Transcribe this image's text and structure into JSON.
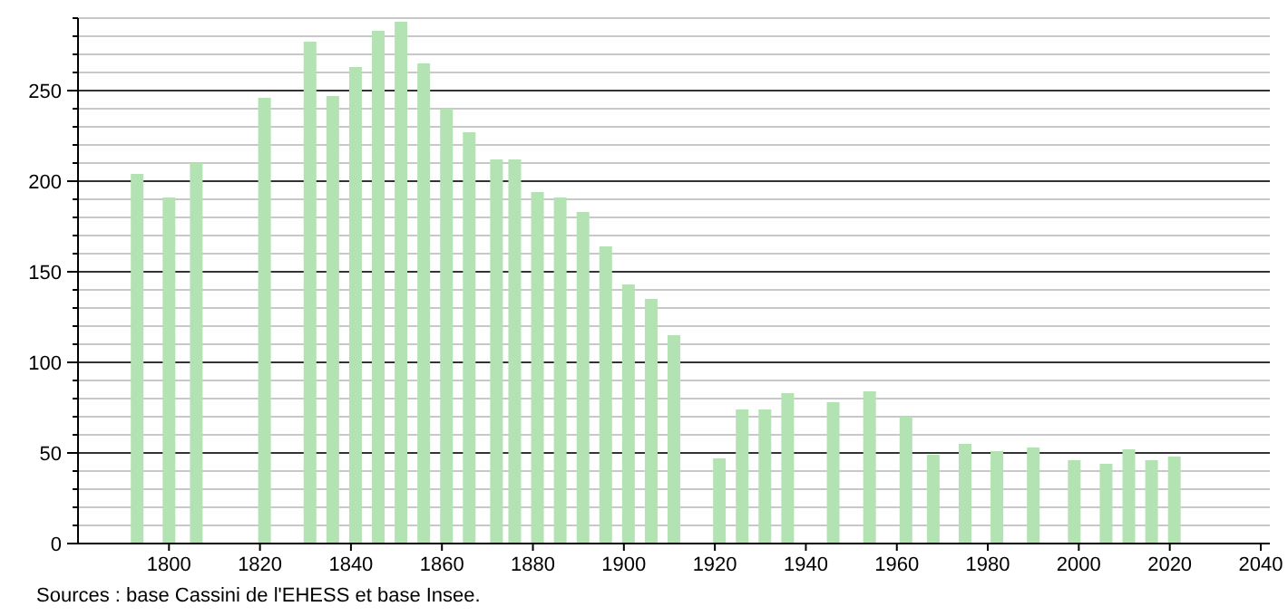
{
  "chart_data": {
    "type": "bar",
    "x": [
      1793,
      1800,
      1806,
      1821,
      1831,
      1836,
      1841,
      1846,
      1851,
      1856,
      1861,
      1866,
      1872,
      1876,
      1881,
      1886,
      1891,
      1896,
      1901,
      1906,
      1911,
      1921,
      1926,
      1931,
      1936,
      1946,
      1954,
      1962,
      1968,
      1975,
      1982,
      1990,
      1999,
      2006,
      2011,
      2016,
      2021
    ],
    "values": [
      204,
      191,
      210,
      246,
      277,
      247,
      263,
      283,
      288,
      265,
      240,
      227,
      212,
      212,
      194,
      191,
      183,
      164,
      143,
      135,
      115,
      47,
      74,
      74,
      83,
      78,
      84,
      70,
      49,
      55,
      51,
      53,
      46,
      44,
      52,
      46,
      48
    ],
    "color": "#b3e3b3",
    "xlim": [
      1780,
      2042
    ],
    "xticks": [
      1800,
      1820,
      1840,
      1860,
      1880,
      1900,
      1920,
      1940,
      1960,
      1980,
      2000,
      2020,
      2040
    ],
    "ylim": [
      0,
      290
    ],
    "yticks": [
      0,
      {
        "value": 10,
        "label": null
      },
      {
        "value": 20,
        "label": null
      },
      {
        "value": 30,
        "label": null
      },
      {
        "value": 40,
        "label": null
      },
      50,
      {
        "value": 60,
        "label": null
      },
      {
        "value": 70,
        "label": null
      },
      {
        "value": 80,
        "label": null
      },
      {
        "value": 90,
        "label": null
      },
      100,
      {
        "value": 110,
        "label": null
      },
      {
        "value": 120,
        "label": null
      },
      {
        "value": 130,
        "label": null
      },
      {
        "value": 140,
        "label": null
      },
      150,
      {
        "value": 160,
        "label": null
      },
      {
        "value": 170,
        "label": null
      },
      {
        "value": 180,
        "label": null
      },
      {
        "value": 190,
        "label": null
      },
      200,
      {
        "value": 210,
        "label": null
      },
      {
        "value": 220,
        "label": null
      },
      {
        "value": 230,
        "label": null
      },
      {
        "value": 240,
        "label": null
      },
      250,
      {
        "value": 260,
        "label": null
      },
      {
        "value": 270,
        "label": null
      },
      {
        "value": 280,
        "label": null
      },
      {
        "value": 290,
        "label": null
      }
    ],
    "grid": "y",
    "annotations": [
      "Sources : base Cassini de l'EHESS et base Insee."
    ]
  }
}
